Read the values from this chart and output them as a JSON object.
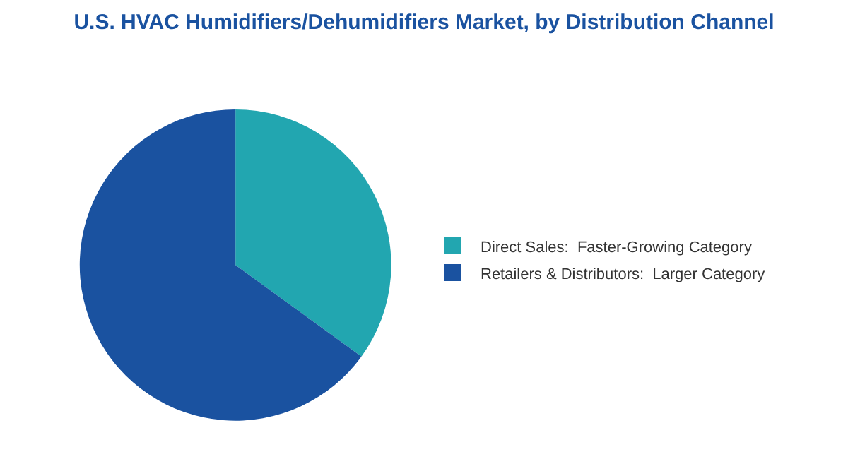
{
  "chart_data": {
    "type": "pie",
    "title": "U.S. HVAC Humidifiers/Dehumidifiers Market, by Distribution Channel",
    "categories": [
      "Direct Sales:  Faster-Growing Category",
      "Retailers & Distributors:  Larger Category"
    ],
    "values": [
      35,
      65
    ],
    "colors": [
      "#22a6b0",
      "#1a52a0"
    ],
    "legend": "right"
  }
}
